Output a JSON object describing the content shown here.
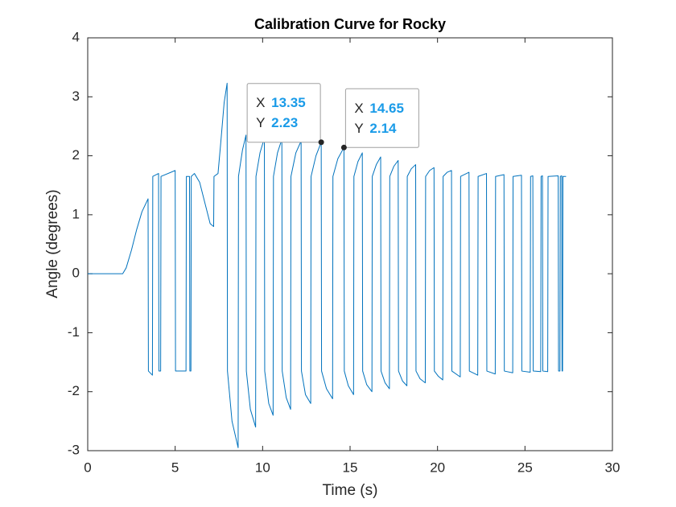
{
  "chart_data": {
    "type": "line",
    "title": "Calibration Curve for Rocky",
    "x_label": "Time (s)",
    "y_label": "Angle (degrees)",
    "xlim": [
      0,
      30
    ],
    "xticks": [
      0,
      5,
      10,
      15,
      20,
      25,
      30
    ],
    "ylim": [
      -3,
      4
    ],
    "yticks": [
      -3,
      -2,
      -1,
      0,
      1,
      2,
      3,
      4
    ],
    "grid": false,
    "x": [
      0,
      2,
      2.2,
      2.5,
      2.8,
      3.1,
      3.45,
      3.47,
      3.7,
      3.72,
      4.05,
      4.07,
      4.17,
      4.19,
      5.0,
      5.02,
      5.62,
      5.64,
      5.82,
      5.84,
      5.9,
      5.92,
      6.1,
      6.4,
      6.7,
      7.0,
      7.2,
      7.22,
      7.45,
      7.6,
      7.8,
      7.97,
      7.99,
      8.25,
      8.6,
      8.62,
      8.85,
      9.05,
      9.07,
      9.3,
      9.6,
      9.62,
      9.85,
      10.1,
      10.12,
      10.35,
      10.6,
      10.62,
      10.85,
      11.1,
      11.12,
      11.35,
      11.6,
      11.62,
      11.9,
      12.2,
      12.22,
      12.45,
      12.75,
      12.77,
      13.05,
      13.35,
      13.37,
      13.65,
      14.0,
      14.02,
      14.3,
      14.65,
      14.67,
      14.9,
      15.2,
      15.22,
      15.45,
      15.7,
      15.72,
      15.95,
      16.25,
      16.27,
      16.5,
      16.75,
      16.77,
      17.0,
      17.25,
      17.27,
      17.5,
      17.75,
      17.77,
      18.0,
      18.25,
      18.27,
      18.5,
      18.75,
      18.77,
      19.0,
      19.3,
      19.32,
      19.55,
      19.8,
      19.82,
      20.05,
      20.3,
      20.32,
      20.55,
      20.8,
      20.82,
      21.3,
      21.32,
      21.8,
      21.82,
      22.3,
      22.32,
      22.8,
      22.82,
      23.3,
      23.32,
      23.8,
      23.82,
      24.3,
      24.32,
      24.8,
      24.82,
      25.3,
      25.32,
      25.45,
      25.47,
      25.9,
      25.92,
      26.0,
      26.02,
      26.3,
      26.32,
      26.9,
      26.92,
      27.0,
      27.02,
      27.1,
      27.12,
      27.15,
      27.17,
      27.35
    ],
    "series": [
      {
        "color": "#0072bd",
        "values": [
          0,
          0,
          0.1,
          0.4,
          0.75,
          1.05,
          1.27,
          -1.65,
          -1.72,
          1.65,
          1.7,
          -1.65,
          -1.65,
          1.65,
          1.75,
          -1.65,
          -1.65,
          1.65,
          1.65,
          -1.65,
          -1.65,
          1.65,
          1.7,
          1.55,
          1.2,
          0.85,
          0.8,
          1.65,
          1.7,
          2.2,
          2.9,
          3.23,
          -1.65,
          -2.5,
          -2.95,
          1.65,
          2.1,
          2.35,
          -1.65,
          -2.3,
          -2.6,
          1.65,
          2.05,
          2.3,
          -1.65,
          -2.2,
          -2.4,
          1.65,
          2.05,
          2.28,
          -1.65,
          -2.1,
          -2.3,
          1.65,
          2.05,
          2.25,
          -1.65,
          -2.05,
          -2.2,
          1.65,
          2.0,
          2.23,
          -1.65,
          -1.95,
          -2.12,
          1.65,
          1.95,
          2.14,
          -1.65,
          -1.9,
          -2.05,
          1.65,
          1.9,
          2.05,
          -1.65,
          -1.88,
          -2.0,
          1.65,
          1.85,
          1.98,
          -1.65,
          -1.85,
          -1.95,
          1.65,
          1.82,
          1.92,
          -1.65,
          -1.82,
          -1.9,
          1.65,
          1.78,
          1.85,
          -1.65,
          -1.78,
          -1.85,
          1.65,
          1.75,
          1.8,
          -1.65,
          -1.74,
          -1.8,
          1.65,
          1.72,
          1.75,
          -1.65,
          -1.75,
          1.65,
          1.72,
          -1.65,
          -1.72,
          1.65,
          1.7,
          -1.65,
          -1.7,
          1.65,
          1.68,
          -1.65,
          -1.68,
          1.65,
          1.67,
          -1.65,
          -1.67,
          1.65,
          1.66,
          -1.65,
          -1.66,
          1.65,
          1.66,
          -1.65,
          -1.66,
          1.65,
          1.66,
          -1.65,
          -1.65,
          1.65,
          1.66,
          -1.65,
          -1.65,
          1.65,
          1.65
        ]
      }
    ],
    "datatip_labels": [
      "X",
      "Y"
    ],
    "datatips": [
      {
        "x": 13.35,
        "y": 2.23
      },
      {
        "x": 14.65,
        "y": 2.14
      }
    ]
  }
}
